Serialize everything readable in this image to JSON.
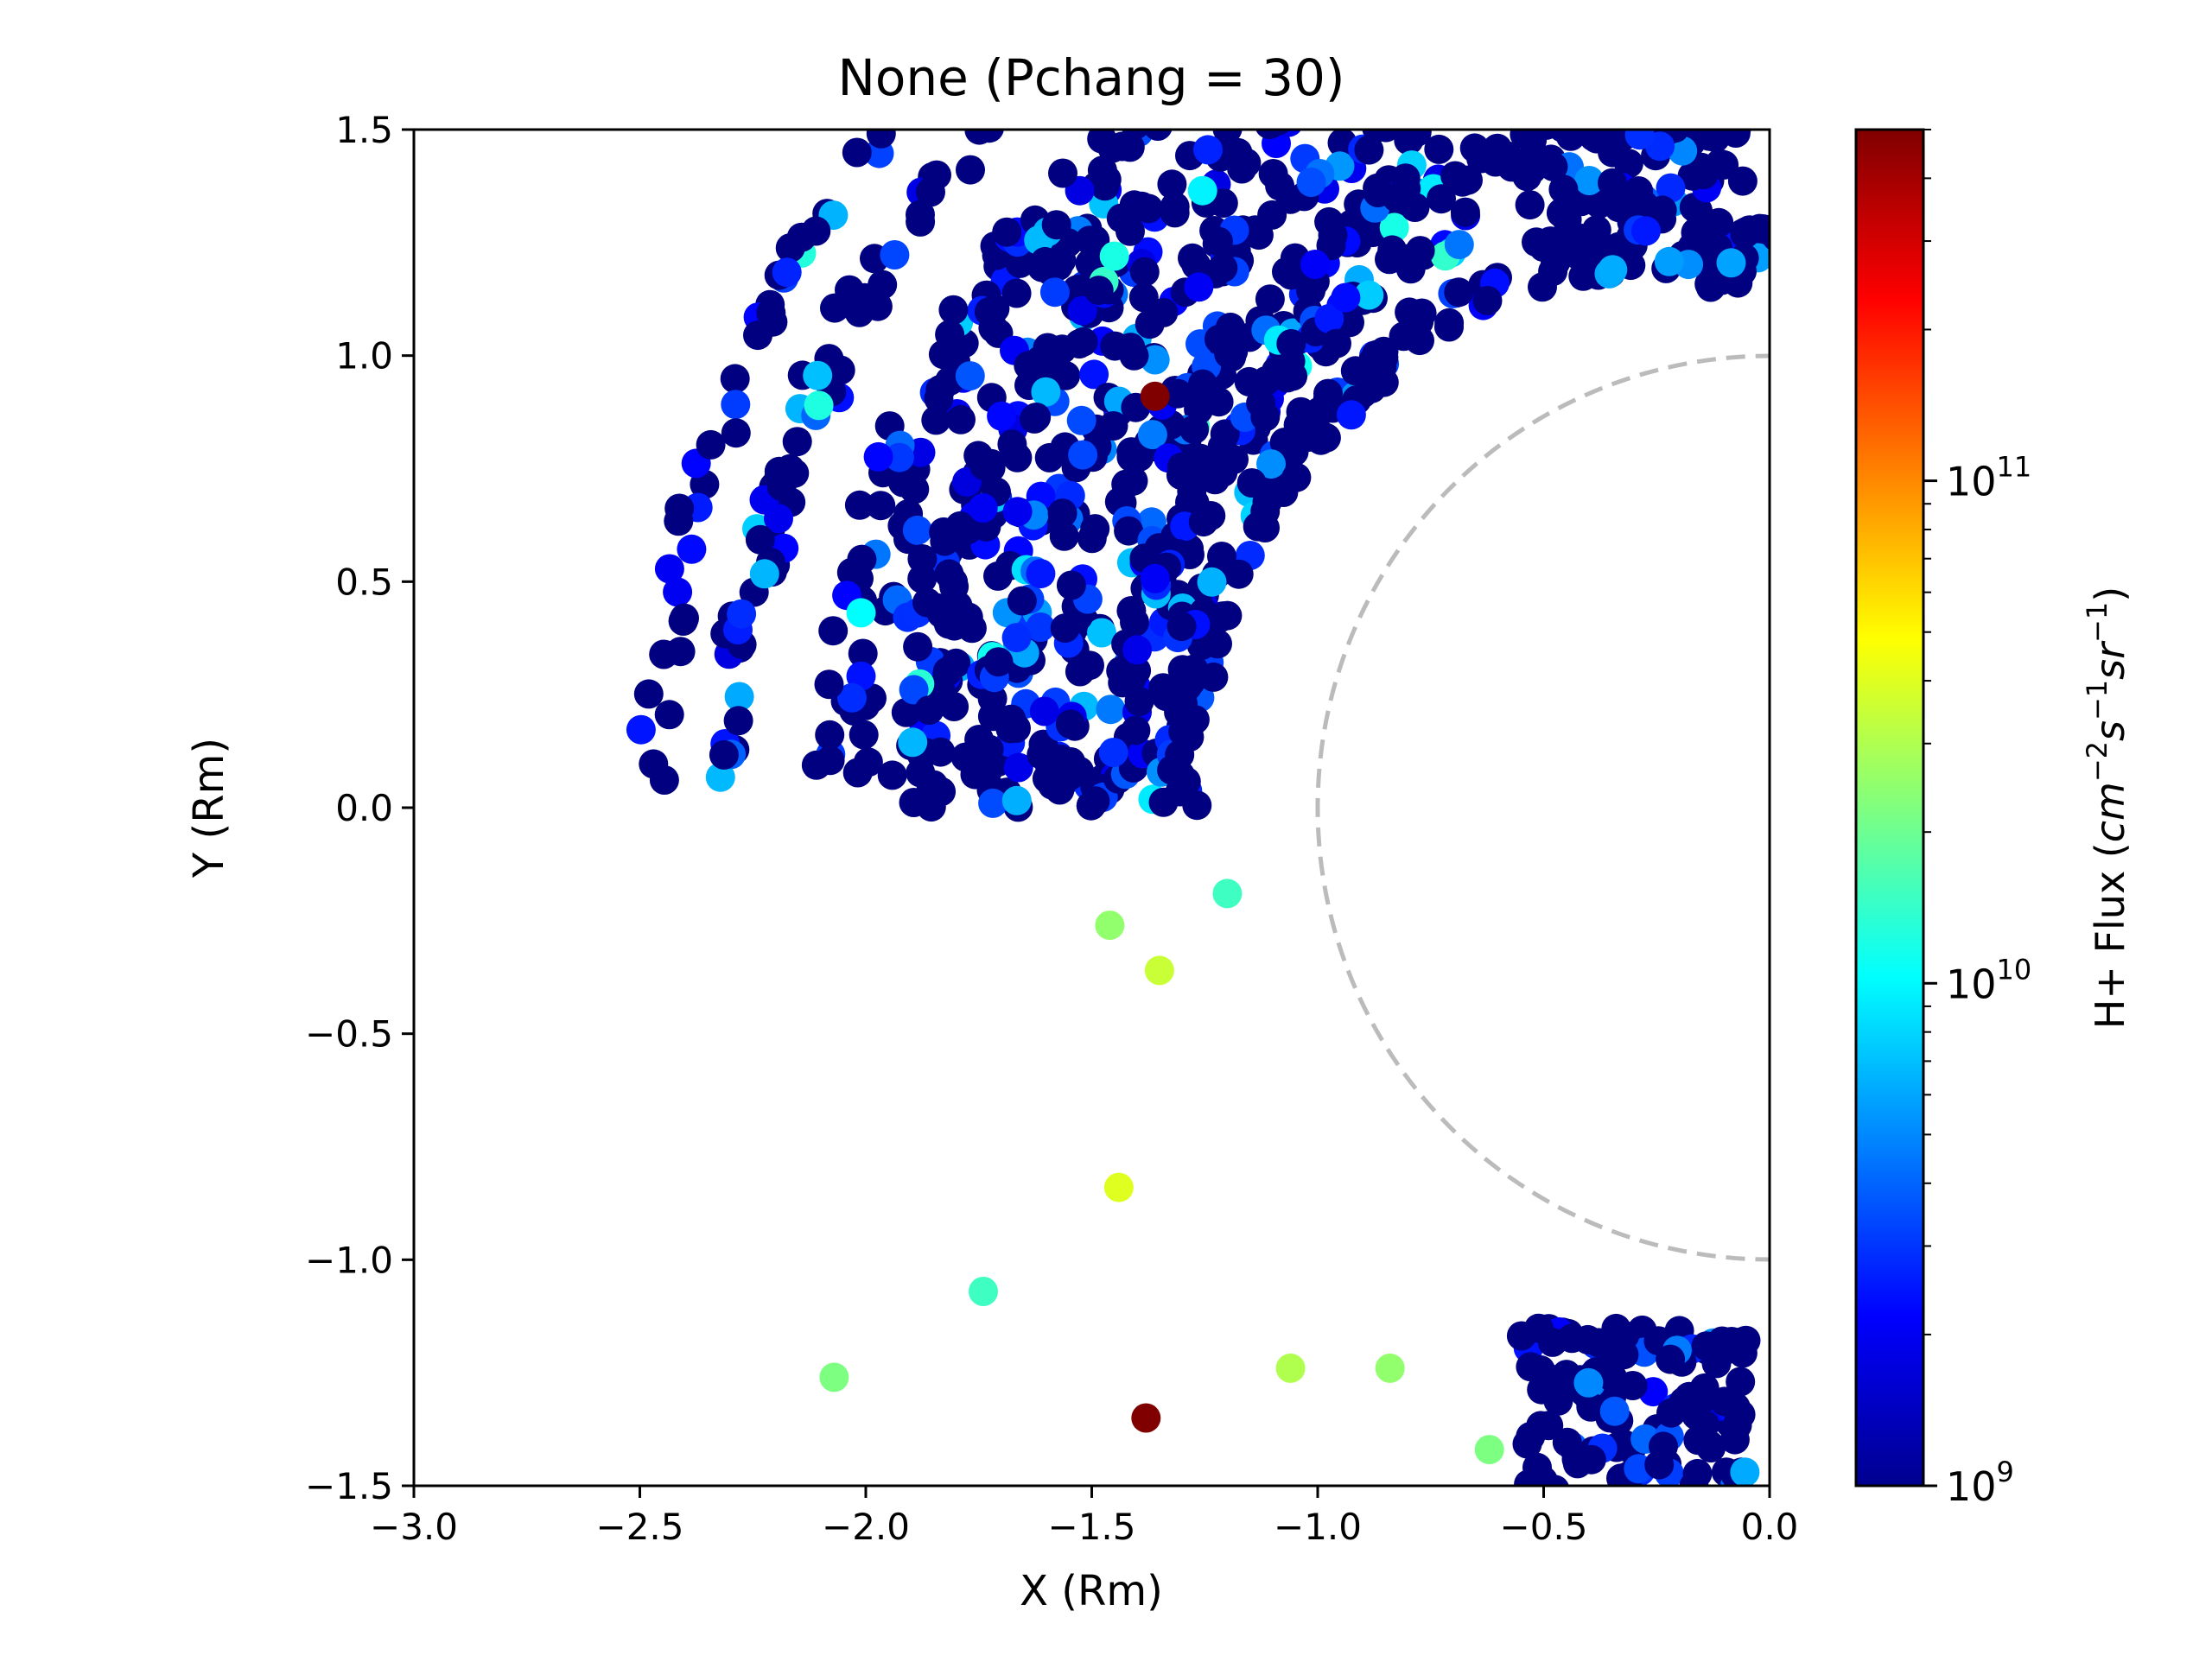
{
  "chart_data": {
    "type": "scatter",
    "title": "None  (Pchang = 30)",
    "xlabel": "X (Rm)",
    "ylabel": "Y (Rm)",
    "xlim": [
      -3.0,
      0.0
    ],
    "ylim": [
      -1.5,
      1.5
    ],
    "xticks": [
      "−3.0",
      "−2.5",
      "−2.0",
      "−1.5",
      "−1.0",
      "−0.5",
      "0.0"
    ],
    "yticks": [
      "−1.5",
      "−1.0",
      "−0.5",
      "0.0",
      "0.5",
      "1.0",
      "1.5"
    ],
    "grid": false,
    "reference_circle": {
      "radius": 1.0,
      "style": "dashed",
      "color": "#bbbbbb"
    },
    "colorbar": {
      "label": "H+ Flux (cm⁻²s⁻¹sr⁻¹)",
      "scale": "log",
      "colormap": "jet",
      "range": [
        1000000000.0,
        500000000000.0
      ],
      "tick_labels": [
        {
          "base": "10",
          "exp": "9",
          "value": 1000000000.0
        },
        {
          "base": "10",
          "exp": "10",
          "value": 10000000000.0
        },
        {
          "base": "10",
          "exp": "11",
          "value": 100000000000.0
        }
      ]
    },
    "marker_color_dominant": "#00008b",
    "structure_note": "Several thousand points densely arranged in concentric arcs between r≈1.1 and r≈2.6 Rm on the dayside (x<0); most flux near 1e9, a few bright points listed below.",
    "notable_points": [
      {
        "x": -1.36,
        "y": 0.91,
        "flux": 500000000000.0
      },
      {
        "x": -1.38,
        "y": -1.35,
        "flux": 500000000000.0
      },
      {
        "x": -1.44,
        "y": -0.84,
        "flux": 40000000000.0
      },
      {
        "x": -1.35,
        "y": -0.36,
        "flux": 35000000000.0
      },
      {
        "x": -1.46,
        "y": -0.26,
        "flux": 25000000000.0
      },
      {
        "x": -0.84,
        "y": -1.24,
        "flux": 25000000000.0
      },
      {
        "x": -2.07,
        "y": -1.26,
        "flux": 22000000000.0
      },
      {
        "x": -0.62,
        "y": -1.42,
        "flux": 22000000000.0
      },
      {
        "x": -1.2,
        "y": -0.19,
        "flux": 15000000000.0
      },
      {
        "x": -1.74,
        "y": -1.07,
        "flux": 15000000000.0
      },
      {
        "x": -1.45,
        "y": 1.22,
        "flux": 12000000000.0
      },
      {
        "x": -1.06,
        "y": -1.24,
        "flux": 30000000000.0
      }
    ]
  }
}
